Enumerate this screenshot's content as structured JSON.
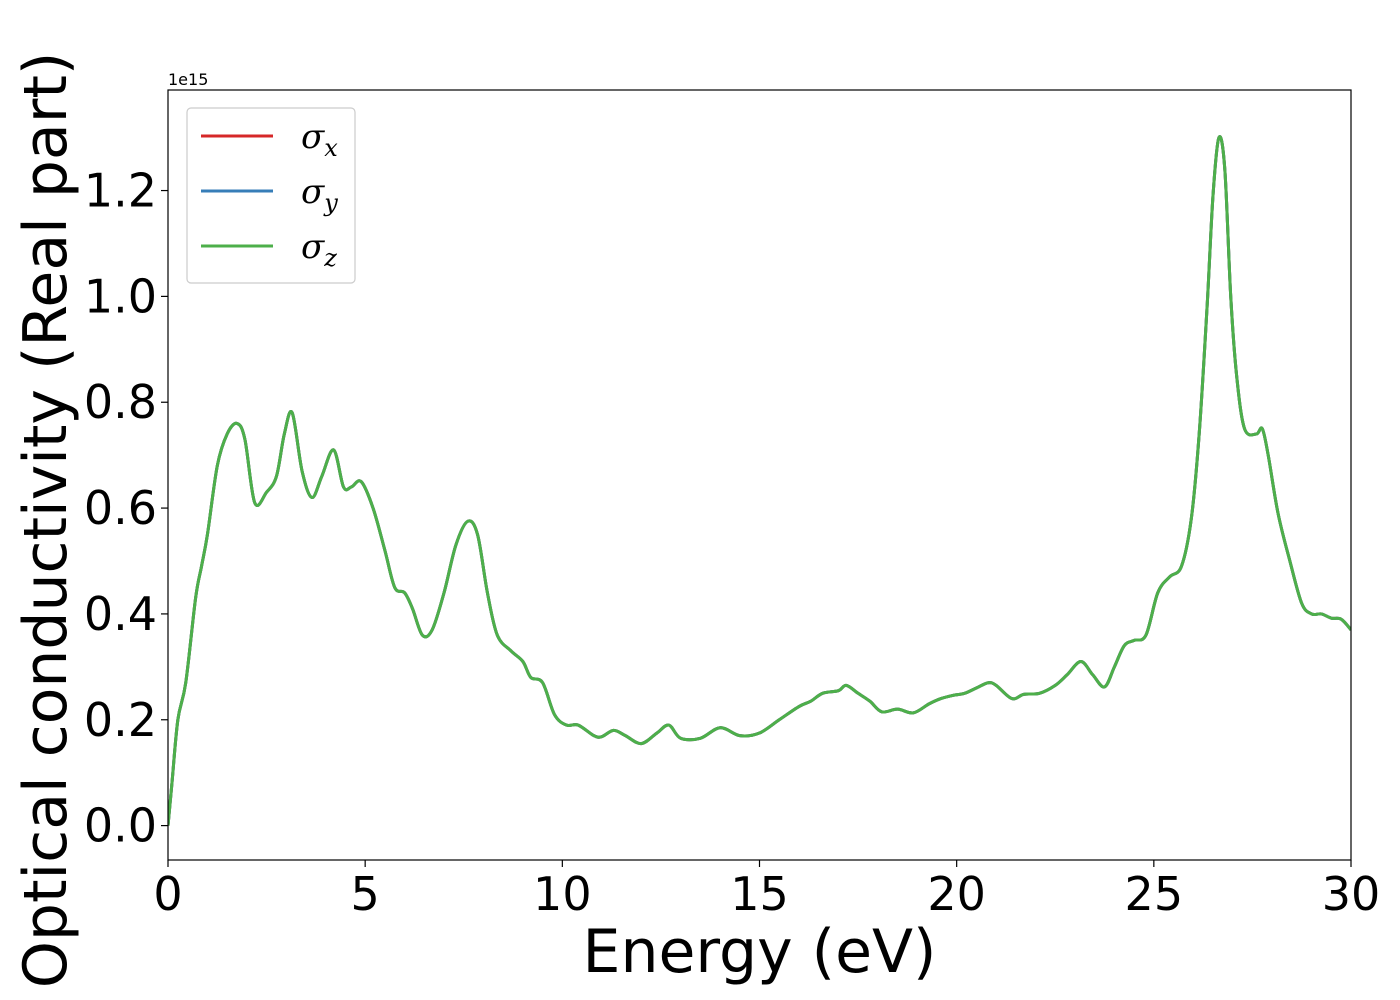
{
  "chart_data": {
    "type": "line",
    "xlabel": "Energy (eV)",
    "ylabel": "Optical conductivity (Real part)",
    "y_offset_label": "1e15",
    "y_scale": 1000000000000000.0,
    "xlim": [
      0,
      30
    ],
    "ylim": [
      -0.065,
      1.39
    ],
    "xticks": [
      0,
      5,
      10,
      15,
      20,
      25,
      30
    ],
    "xtick_labels": [
      "0",
      "5",
      "10",
      "15",
      "20",
      "25",
      "30"
    ],
    "yticks": [
      0.0,
      0.2,
      0.4,
      0.6,
      0.8,
      1.0,
      1.2
    ],
    "ytick_labels": [
      "0.0",
      "0.2",
      "0.4",
      "0.6",
      "0.8",
      "1.0",
      "1.2"
    ],
    "grid": false,
    "legend_position": "top-left",
    "series": [
      {
        "name": "σx",
        "symbol": "σ",
        "subscript": "x",
        "color": "#d62728",
        "x": [
          0,
          0.1,
          0.25,
          0.45,
          0.7,
          0.85,
          1.0,
          1.25,
          1.5,
          1.75,
          1.95,
          2.2,
          2.5,
          2.75,
          2.95,
          3.15,
          3.4,
          3.65,
          3.9,
          4.2,
          4.45,
          4.65,
          4.9,
          5.2,
          5.5,
          5.75,
          6.0,
          6.2,
          6.45,
          6.7,
          7.0,
          7.3,
          7.6,
          7.85,
          8.1,
          8.35,
          8.7,
          9.0,
          9.2,
          9.5,
          9.8,
          10.1,
          10.4,
          10.8,
          11.0,
          11.3,
          11.6,
          12.0,
          12.4,
          12.7,
          13.0,
          13.5,
          14.0,
          14.5,
          15.0,
          15.5,
          16.0,
          16.3,
          16.6,
          17.0,
          17.2,
          17.5,
          17.8,
          18.1,
          18.5,
          18.9,
          19.3,
          19.6,
          19.9,
          20.2,
          20.5,
          20.8,
          21.0,
          21.4,
          21.7,
          22.1,
          22.5,
          22.8,
          23.15,
          23.45,
          23.75,
          24.0,
          24.25,
          24.5,
          24.8,
          25.1,
          25.4,
          25.7,
          25.95,
          26.15,
          26.35,
          26.5,
          26.65,
          26.8,
          26.95,
          27.1,
          27.3,
          27.6,
          27.75,
          27.9,
          28.15,
          28.45,
          28.75,
          29.0,
          29.25,
          29.5,
          29.75,
          30.0
        ],
        "y": [
          0.0,
          0.08,
          0.2,
          0.27,
          0.43,
          0.49,
          0.55,
          0.68,
          0.74,
          0.76,
          0.73,
          0.61,
          0.63,
          0.66,
          0.74,
          0.78,
          0.67,
          0.62,
          0.66,
          0.71,
          0.64,
          0.64,
          0.65,
          0.6,
          0.52,
          0.45,
          0.44,
          0.41,
          0.36,
          0.37,
          0.44,
          0.53,
          0.575,
          0.55,
          0.44,
          0.36,
          0.33,
          0.31,
          0.28,
          0.27,
          0.21,
          0.19,
          0.19,
          0.17,
          0.168,
          0.18,
          0.17,
          0.155,
          0.175,
          0.19,
          0.165,
          0.165,
          0.185,
          0.17,
          0.175,
          0.2,
          0.225,
          0.235,
          0.25,
          0.255,
          0.265,
          0.25,
          0.235,
          0.215,
          0.22,
          0.213,
          0.23,
          0.24,
          0.246,
          0.25,
          0.26,
          0.27,
          0.265,
          0.24,
          0.248,
          0.25,
          0.265,
          0.285,
          0.31,
          0.285,
          0.262,
          0.3,
          0.34,
          0.35,
          0.36,
          0.44,
          0.47,
          0.49,
          0.58,
          0.74,
          0.98,
          1.19,
          1.3,
          1.24,
          1.0,
          0.85,
          0.75,
          0.74,
          0.75,
          0.7,
          0.59,
          0.5,
          0.42,
          0.4,
          0.4,
          0.392,
          0.39,
          0.37
        ]
      },
      {
        "name": "σy",
        "symbol": "σ",
        "subscript": "y",
        "color": "#377eb8",
        "x": [
          0,
          0.1,
          0.25,
          0.45,
          0.7,
          0.85,
          1.0,
          1.25,
          1.5,
          1.75,
          1.95,
          2.2,
          2.5,
          2.75,
          2.95,
          3.15,
          3.4,
          3.65,
          3.9,
          4.2,
          4.45,
          4.65,
          4.9,
          5.2,
          5.5,
          5.75,
          6.0,
          6.2,
          6.45,
          6.7,
          7.0,
          7.3,
          7.6,
          7.85,
          8.1,
          8.35,
          8.7,
          9.0,
          9.2,
          9.5,
          9.8,
          10.1,
          10.4,
          10.8,
          11.0,
          11.3,
          11.6,
          12.0,
          12.4,
          12.7,
          13.0,
          13.5,
          14.0,
          14.5,
          15.0,
          15.5,
          16.0,
          16.3,
          16.6,
          17.0,
          17.2,
          17.5,
          17.8,
          18.1,
          18.5,
          18.9,
          19.3,
          19.6,
          19.9,
          20.2,
          20.5,
          20.8,
          21.0,
          21.4,
          21.7,
          22.1,
          22.5,
          22.8,
          23.15,
          23.45,
          23.75,
          24.0,
          24.25,
          24.5,
          24.8,
          25.1,
          25.4,
          25.7,
          25.95,
          26.15,
          26.35,
          26.5,
          26.65,
          26.8,
          26.95,
          27.1,
          27.3,
          27.6,
          27.75,
          27.9,
          28.15,
          28.45,
          28.75,
          29.0,
          29.25,
          29.5,
          29.75,
          30.0
        ],
        "y": [
          0.0,
          0.08,
          0.2,
          0.27,
          0.43,
          0.49,
          0.55,
          0.68,
          0.74,
          0.76,
          0.73,
          0.61,
          0.63,
          0.66,
          0.74,
          0.78,
          0.67,
          0.62,
          0.66,
          0.71,
          0.64,
          0.64,
          0.65,
          0.6,
          0.52,
          0.45,
          0.44,
          0.41,
          0.36,
          0.37,
          0.44,
          0.53,
          0.575,
          0.55,
          0.44,
          0.36,
          0.33,
          0.31,
          0.28,
          0.27,
          0.21,
          0.19,
          0.19,
          0.17,
          0.168,
          0.18,
          0.17,
          0.155,
          0.175,
          0.19,
          0.165,
          0.165,
          0.185,
          0.17,
          0.175,
          0.2,
          0.225,
          0.235,
          0.25,
          0.255,
          0.265,
          0.25,
          0.235,
          0.215,
          0.22,
          0.213,
          0.23,
          0.24,
          0.246,
          0.25,
          0.26,
          0.27,
          0.265,
          0.24,
          0.248,
          0.25,
          0.265,
          0.285,
          0.31,
          0.285,
          0.262,
          0.3,
          0.34,
          0.35,
          0.36,
          0.44,
          0.47,
          0.49,
          0.58,
          0.74,
          0.98,
          1.19,
          1.3,
          1.24,
          1.0,
          0.85,
          0.75,
          0.74,
          0.75,
          0.7,
          0.59,
          0.5,
          0.42,
          0.4,
          0.4,
          0.392,
          0.39,
          0.37
        ]
      },
      {
        "name": "σz",
        "symbol": "σ",
        "subscript": "z",
        "color": "#4daf4a",
        "x": [
          0,
          0.1,
          0.25,
          0.45,
          0.7,
          0.85,
          1.0,
          1.25,
          1.5,
          1.75,
          1.95,
          2.2,
          2.5,
          2.75,
          2.95,
          3.15,
          3.4,
          3.65,
          3.9,
          4.2,
          4.45,
          4.65,
          4.9,
          5.2,
          5.5,
          5.75,
          6.0,
          6.2,
          6.45,
          6.7,
          7.0,
          7.3,
          7.6,
          7.85,
          8.1,
          8.35,
          8.7,
          9.0,
          9.2,
          9.5,
          9.8,
          10.1,
          10.4,
          10.8,
          11.0,
          11.3,
          11.6,
          12.0,
          12.4,
          12.7,
          13.0,
          13.5,
          14.0,
          14.5,
          15.0,
          15.5,
          16.0,
          16.3,
          16.6,
          17.0,
          17.2,
          17.5,
          17.8,
          18.1,
          18.5,
          18.9,
          19.3,
          19.6,
          19.9,
          20.2,
          20.5,
          20.8,
          21.0,
          21.4,
          21.7,
          22.1,
          22.5,
          22.8,
          23.15,
          23.45,
          23.75,
          24.0,
          24.25,
          24.5,
          24.8,
          25.1,
          25.4,
          25.7,
          25.95,
          26.15,
          26.35,
          26.5,
          26.65,
          26.8,
          26.95,
          27.1,
          27.3,
          27.6,
          27.75,
          27.9,
          28.15,
          28.45,
          28.75,
          29.0,
          29.25,
          29.5,
          29.75,
          30.0
        ],
        "y": [
          0.0,
          0.08,
          0.2,
          0.27,
          0.43,
          0.49,
          0.55,
          0.68,
          0.74,
          0.76,
          0.73,
          0.61,
          0.63,
          0.66,
          0.74,
          0.78,
          0.67,
          0.62,
          0.66,
          0.71,
          0.64,
          0.64,
          0.65,
          0.6,
          0.52,
          0.45,
          0.44,
          0.41,
          0.36,
          0.37,
          0.44,
          0.53,
          0.575,
          0.55,
          0.44,
          0.36,
          0.33,
          0.31,
          0.28,
          0.27,
          0.21,
          0.19,
          0.19,
          0.17,
          0.168,
          0.18,
          0.17,
          0.155,
          0.175,
          0.19,
          0.165,
          0.165,
          0.185,
          0.17,
          0.175,
          0.2,
          0.225,
          0.235,
          0.25,
          0.255,
          0.265,
          0.25,
          0.235,
          0.215,
          0.22,
          0.213,
          0.23,
          0.24,
          0.246,
          0.25,
          0.26,
          0.27,
          0.265,
          0.24,
          0.248,
          0.25,
          0.265,
          0.285,
          0.31,
          0.285,
          0.262,
          0.3,
          0.34,
          0.35,
          0.36,
          0.44,
          0.47,
          0.49,
          0.58,
          0.74,
          0.98,
          1.19,
          1.3,
          1.24,
          1.0,
          0.85,
          0.75,
          0.74,
          0.75,
          0.7,
          0.59,
          0.5,
          0.42,
          0.4,
          0.4,
          0.392,
          0.39,
          0.37
        ]
      }
    ]
  }
}
